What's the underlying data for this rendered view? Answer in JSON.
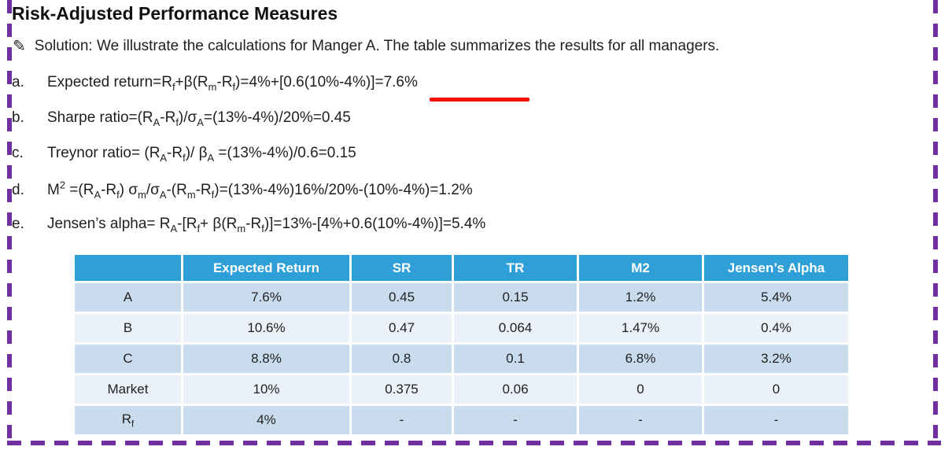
{
  "colors": {
    "border-purple": "#7030A0",
    "header-blue": "#2F9FD8",
    "row-dark": "#C9DCEE",
    "row-light": "#EAF1F8",
    "accent-red": "#F50A0A"
  },
  "title": "Risk-Adjusted Performance Measures",
  "solution": {
    "icon": "✎",
    "text": "Solution: We illustrate the calculations for Manger A. The table summarizes the results for all managers."
  },
  "items": [
    {
      "letter": "a.",
      "formula_html": "Expected return=R<sub>f</sub>+β(R<sub>m</sub>-R<sub>f</sub>)=4%+[0.6(10%-4%)]=7.6%"
    },
    {
      "letter": "b.",
      "formula_html": "Sharpe ratio=(R<sub>A</sub>-R<sub>f</sub>)/σ<sub>A</sub>=(13%-4%)/20%=0.45"
    },
    {
      "letter": "c.",
      "formula_html": "Treynor ratio= (R<sub>A</sub>-R<sub>f</sub>)/ β<sub>A</sub> =(13%-4%)/0.6=0.15"
    },
    {
      "letter": "d.",
      "formula_html": "M<sup>2</sup> =(R<sub>A</sub>-R<sub>f</sub>) σ<sub>m</sub>/σ<sub>A</sub>-(R<sub>m</sub>-R<sub>f</sub>)=(13%-4%)16%/20%-(10%-4%)=1.2%"
    },
    {
      "letter": "e.",
      "formula_html": "Jensen’s alpha= R<sub>A</sub>-[R<sub>f</sub>+ β(R<sub>m</sub>-R<sub>f</sub>)]=13%-[4%+0.6(10%-4%)]=5.4%"
    }
  ],
  "table": {
    "headers": [
      "",
      "Expected Return",
      "SR",
      "TR",
      "M2",
      "Jensen’s Alpha"
    ],
    "rows": [
      {
        "label_html": "A",
        "cells": [
          "7.6%",
          "0.45",
          "0.15",
          "1.2%",
          "5.4%"
        ]
      },
      {
        "label_html": "B",
        "cells": [
          "10.6%",
          "0.47",
          "0.064",
          "1.47%",
          "0.4%"
        ]
      },
      {
        "label_html": "C",
        "cells": [
          "8.8%",
          "0.8",
          "0.1",
          "6.8%",
          "3.2%"
        ]
      },
      {
        "label_html": "Market",
        "cells": [
          "10%",
          "0.375",
          "0.06",
          "0",
          "0"
        ]
      },
      {
        "label_html": "R<sub>f</sub>",
        "cells": [
          "4%",
          "-",
          "-",
          "-",
          "-"
        ]
      }
    ]
  }
}
